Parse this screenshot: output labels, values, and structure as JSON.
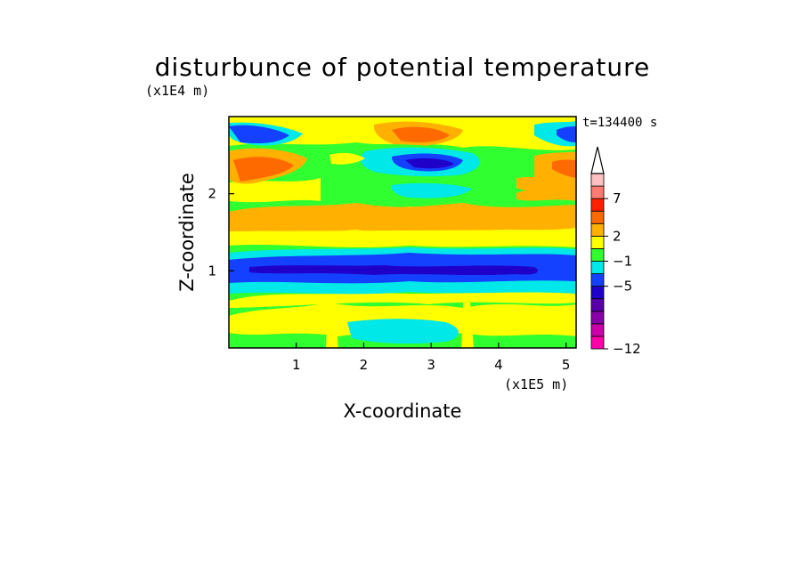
{
  "chart_data": {
    "type": "heatmap",
    "title": "disturbunce of potential temperature",
    "xlabel": "X-coordinate",
    "ylabel": "Z-coordinate",
    "x_unit": "(x1E5 m)",
    "y_unit": "(x1E4 m)",
    "time_label": "t=134400 s",
    "xlim": [
      0,
      5.15
    ],
    "ylim": [
      0,
      3.0
    ],
    "x_ticks": [
      {
        "value": 1,
        "label": "1"
      },
      {
        "value": 2,
        "label": "2"
      },
      {
        "value": 3,
        "label": "3"
      },
      {
        "value": 4,
        "label": "4"
      },
      {
        "value": 5,
        "label": "5"
      }
    ],
    "y_ticks": [
      {
        "value": 1,
        "label": "1"
      },
      {
        "value": 2,
        "label": "2"
      }
    ],
    "colorbar": {
      "colors": [
        "#ff00aa",
        "#cc00aa",
        "#8800aa",
        "#5a00aa",
        "#1f00c8",
        "#1440ff",
        "#00e8e8",
        "#30ff30",
        "#ffff00",
        "#ffb000",
        "#ff6a00",
        "#ff2000",
        "#ff7a70",
        "#ffc0c0"
      ],
      "arrow_color": "#ffffff",
      "labels": [
        {
          "value": 7,
          "label": "7"
        },
        {
          "value": 2,
          "label": "2"
        },
        {
          "value": -1,
          "label": "−1"
        },
        {
          "value": -5,
          "label": "−5"
        },
        {
          "value": -12,
          "label": "−12"
        }
      ]
    },
    "field_approx": [
      {
        "z": [
          0.0,
          0.25
        ],
        "value": 0,
        "note": "green"
      },
      {
        "z": [
          0.25,
          0.6
        ],
        "value": 1,
        "note": "yellow"
      },
      {
        "z": [
          0.6,
          0.85
        ],
        "value": -1,
        "note": "cyan"
      },
      {
        "z": [
          0.85,
          1.05
        ],
        "value": -4,
        "note": "blue"
      },
      {
        "z": [
          1.05,
          1.3
        ],
        "value": -1,
        "note": "cyan"
      },
      {
        "z": [
          1.3,
          1.6
        ],
        "value": 1,
        "note": "yellow"
      },
      {
        "z": [
          1.6,
          2.0
        ],
        "value": 3,
        "note": "orange"
      },
      {
        "z": [
          2.0,
          2.6
        ],
        "value": 0,
        "note": "green"
      },
      {
        "z": [
          2.6,
          3.0
        ],
        "value": 2,
        "note": "yellow/orange"
      }
    ]
  }
}
